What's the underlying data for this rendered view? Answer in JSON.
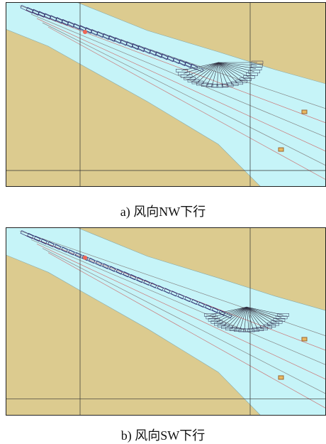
{
  "figures": [
    {
      "caption": "a) 风向NW下行"
    },
    {
      "caption": "b) 风向SW下行"
    }
  ]
}
